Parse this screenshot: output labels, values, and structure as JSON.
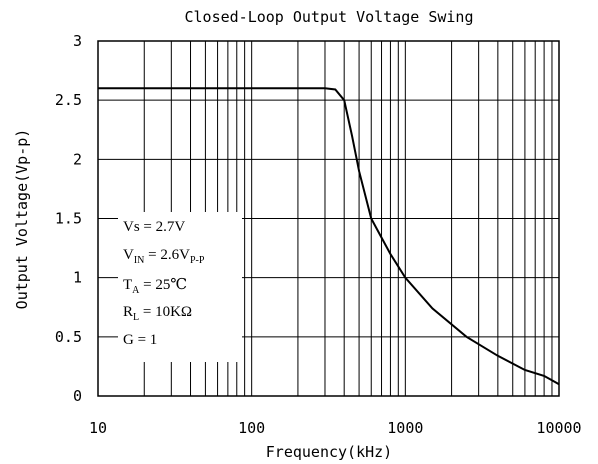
{
  "chart_data": {
    "type": "line",
    "title": "Closed-Loop Output Voltage Swing",
    "xlabel": "Frequency(kHz)",
    "ylabel": "Output Voltage(Vp-p)",
    "x_scale": "log",
    "xlim": [
      10,
      10000
    ],
    "ylim": [
      0,
      3
    ],
    "x_ticks": [
      10,
      100,
      1000,
      10000
    ],
    "x_tick_labels": [
      "10",
      "100",
      "1000",
      "10000"
    ],
    "y_ticks": [
      0,
      0.5,
      1,
      1.5,
      2,
      2.5,
      3
    ],
    "y_tick_labels": [
      "0",
      "0.5",
      "1",
      "1.5",
      "2",
      "2.5",
      "3"
    ],
    "grid": true,
    "series": [
      {
        "x": [
          10,
          20,
          50,
          100,
          200,
          300,
          350,
          400,
          450,
          500,
          600,
          800,
          1000,
          1500,
          2500,
          4000,
          6000,
          8000,
          10000
        ],
        "y": [
          2.6,
          2.6,
          2.6,
          2.6,
          2.6,
          2.6,
          2.59,
          2.5,
          2.2,
          1.9,
          1.5,
          1.2,
          1.0,
          0.74,
          0.5,
          0.34,
          0.22,
          0.17,
          0.1
        ]
      }
    ],
    "annotations": {
      "vs": {
        "main": "Vs = 2.7V"
      },
      "vin": {
        "main": "V",
        "sub": "IN",
        "rest": " = 2.6V",
        "sub2": "P-P"
      },
      "ta": {
        "main": "T",
        "sub": "A",
        "rest": " = 25℃"
      },
      "rl": {
        "main": "R",
        "sub": "L",
        "rest": " = 10KΩ"
      },
      "gain": {
        "main": "G = 1"
      }
    }
  }
}
